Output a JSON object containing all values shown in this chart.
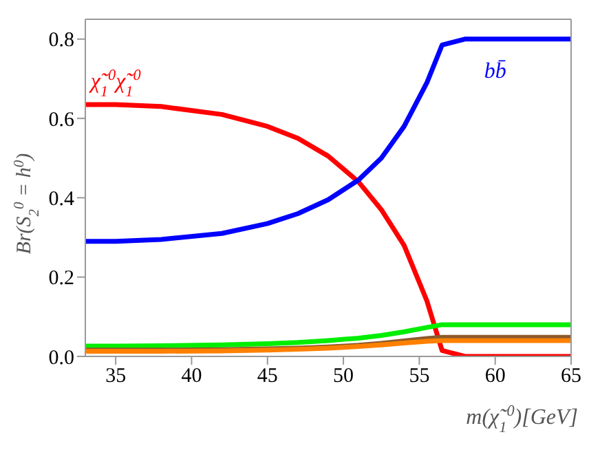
{
  "chart_data": {
    "type": "line",
    "xlabel": "m(χ̃$_{1}$$^{0}$)[GeV]",
    "ylabel": "Br(S$_{2}$$^{0}$ = h$^{0}$)",
    "x": [
      33,
      35,
      38,
      42,
      45,
      47,
      49,
      51,
      52.5,
      54,
      55.5,
      56.5,
      58,
      60,
      65
    ],
    "series": [
      {
        "name": "χ̃$_{1}$$^{0}$χ̃$_{1}$$^{0}$",
        "color": "#ff0000",
        "values": [
          0.635,
          0.635,
          0.63,
          0.61,
          0.58,
          0.55,
          0.505,
          0.44,
          0.37,
          0.28,
          0.14,
          0.015,
          0,
          0,
          0
        ]
      },
      {
        "name": "bb̄",
        "color": "#0000ff",
        "values": [
          0.29,
          0.29,
          0.295,
          0.31,
          0.335,
          0.36,
          0.395,
          0.445,
          0.5,
          0.58,
          0.69,
          0.785,
          0.8,
          0.8,
          0.8
        ]
      },
      {
        "color": "#00ee00",
        "values": [
          0.026,
          0.026,
          0.027,
          0.029,
          0.032,
          0.035,
          0.04,
          0.046,
          0.053,
          0.062,
          0.073,
          0.08,
          0.08,
          0.08,
          0.08
        ]
      },
      {
        "color": "#8b5a2b",
        "values": [
          0.016,
          0.016,
          0.016,
          0.017,
          0.019,
          0.021,
          0.024,
          0.028,
          0.033,
          0.039,
          0.045,
          0.048,
          0.048,
          0.048,
          0.048
        ]
      },
      {
        "color": "#ff8000",
        "values": [
          0.013,
          0.013,
          0.013,
          0.014,
          0.016,
          0.018,
          0.021,
          0.025,
          0.029,
          0.034,
          0.038,
          0.04,
          0.04,
          0.04,
          0.04
        ]
      }
    ],
    "xlim": [
      33,
      65
    ],
    "xticks": [
      35,
      40,
      45,
      50,
      55,
      60,
      65
    ],
    "ylim": [
      0,
      0.85
    ],
    "yticks": [
      {
        "value": 0,
        "label": "0.0"
      },
      {
        "value": 0.2,
        "label": "0.2"
      },
      {
        "value": 0.4,
        "label": "0.4"
      },
      {
        "value": 0.6,
        "label": "0.6"
      },
      {
        "value": 0.8,
        "label": "0.8"
      }
    ],
    "grid": false,
    "legend": false,
    "marker": "none",
    "line_style": "solid"
  }
}
